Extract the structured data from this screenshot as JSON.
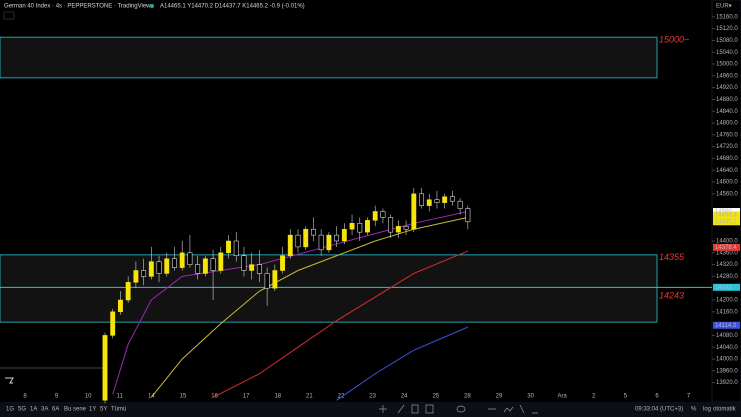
{
  "header": {
    "symbol": "German 40 Index · 4s · PEPPERSTONE · TradingView",
    "ohlc": "A14465.1 Y14470.2 D14437.7 K14465.2 -0.9 (-0.01%)",
    "currency": "EUR▾"
  },
  "chart_data": {
    "type": "candlestick",
    "up_color": "#f5e50b",
    "down_color": "#000000",
    "wick_color": "#d0d0d0",
    "ylim": [
      13861,
      15217
    ],
    "yticks": [
      {
        "value": 15160,
        "label": "15160.0"
      },
      {
        "value": 15120,
        "label": "15120.0"
      },
      {
        "value": 15080,
        "label": "15080.0"
      },
      {
        "value": 15040,
        "label": "15040.0"
      },
      {
        "value": 15000,
        "label": "15000.0"
      },
      {
        "value": 14960,
        "label": "14960.0"
      },
      {
        "value": 14920,
        "label": "14920.0"
      },
      {
        "value": 14880,
        "label": "14880.0"
      },
      {
        "value": 14840,
        "label": "14840.0"
      },
      {
        "value": 14800,
        "label": "14800.0"
      },
      {
        "value": 14760,
        "label": "14760.0"
      },
      {
        "value": 14720,
        "label": "14720.0"
      },
      {
        "value": 14680,
        "label": "14680.0"
      },
      {
        "value": 14640,
        "label": "14640.0"
      },
      {
        "value": 14600,
        "label": "14600.0"
      },
      {
        "value": 14560,
        "label": "14560.0"
      },
      {
        "value": 14400,
        "label": "14400.0"
      },
      {
        "value": 14360,
        "label": "14360.0"
      },
      {
        "value": 14320,
        "label": "14320.0"
      },
      {
        "value": 14280,
        "label": "14280.0"
      },
      {
        "value": 14200,
        "label": "14200.0"
      },
      {
        "value": 14160,
        "label": "14160.0"
      },
      {
        "value": 14080,
        "label": "14080.0"
      },
      {
        "value": 14040,
        "label": "14040.0"
      },
      {
        "value": 14000,
        "label": "14000.0"
      },
      {
        "value": 13960,
        "label": "13960.0"
      },
      {
        "value": 13920,
        "label": "13920.0"
      }
    ],
    "time_labels": [
      "8",
      "9",
      "10",
      "11",
      "14",
      "15",
      "16",
      "17",
      "18",
      "21",
      "22",
      "23",
      "24",
      "25",
      "28",
      "29",
      "30",
      "Ara",
      "2",
      "5",
      "6",
      "7"
    ],
    "open": [
      13860,
      14080,
      14160,
      14200,
      14260,
      14300,
      14280,
      14330,
      14290,
      14340,
      14310,
      14360,
      14320,
      14290,
      14340,
      14300,
      14360,
      14400,
      14350,
      14300,
      14320,
      14290,
      14240,
      14300,
      14350,
      14420,
      14380,
      14440,
      14420,
      14370,
      14420,
      14400,
      14440,
      14460,
      14430,
      14470,
      14500,
      14480,
      14430,
      14450,
      14440,
      14560,
      14520,
      14540,
      14530,
      14550,
      14535,
      14510
    ],
    "high": [
      14090,
      14170,
      14230,
      14280,
      14330,
      14340,
      14380,
      14350,
      14360,
      14380,
      14400,
      14420,
      14350,
      14350,
      14370,
      14380,
      14420,
      14430,
      14380,
      14360,
      14370,
      14310,
      14320,
      14380,
      14440,
      14440,
      14450,
      14480,
      14440,
      14430,
      14450,
      14460,
      14490,
      14480,
      14480,
      14520,
      14510,
      14490,
      14470,
      14470,
      14580,
      14580,
      14560,
      14570,
      14560,
      14570,
      14545,
      14520
    ],
    "low": [
      13850,
      14070,
      14150,
      14190,
      14240,
      14250,
      14270,
      14260,
      14280,
      14300,
      14300,
      14310,
      14270,
      14280,
      14200,
      14290,
      14340,
      14330,
      14280,
      14270,
      14260,
      14180,
      14230,
      14290,
      14340,
      14360,
      14370,
      14400,
      14350,
      14360,
      14380,
      14390,
      14420,
      14400,
      14420,
      14450,
      14460,
      14410,
      14410,
      14420,
      14430,
      14510,
      14500,
      14510,
      14510,
      14520,
      14490,
      14440
    ],
    "close": [
      14080,
      14160,
      14200,
      14260,
      14300,
      14280,
      14330,
      14290,
      14340,
      14310,
      14360,
      14320,
      14290,
      14340,
      14300,
      14360,
      14400,
      14350,
      14300,
      14320,
      14290,
      14240,
      14300,
      14350,
      14420,
      14380,
      14440,
      14420,
      14370,
      14420,
      14400,
      14440,
      14460,
      14430,
      14470,
      14500,
      14480,
      14430,
      14450,
      14440,
      14560,
      14520,
      14540,
      14530,
      14550,
      14535,
      14510,
      14465
    ],
    "ma": [
      {
        "color": "#9c27b0",
        "x": [
          1,
          3,
          6,
          10,
          20,
          30,
          40,
          47
        ],
        "values": [
          13880,
          14050,
          14200,
          14280,
          14320,
          14390,
          14460,
          14500
        ]
      },
      {
        "color": "#c9b83a",
        "x": [
          6,
          10,
          15,
          20,
          25,
          30,
          35,
          40,
          47
        ],
        "values": [
          13870,
          14000,
          14120,
          14230,
          14300,
          14350,
          14400,
          14440,
          14480
        ]
      },
      {
        "color": "#d32f2f",
        "x": [
          14,
          20,
          25,
          30,
          35,
          40,
          47
        ],
        "values": [
          13870,
          13950,
          14040,
          14130,
          14210,
          14290,
          14366
        ]
      },
      {
        "color": "#3f51e0",
        "x": [
          30,
          35,
          40,
          47
        ],
        "values": [
          13860,
          13950,
          14030,
          14108
        ]
      }
    ],
    "zones": [
      {
        "label": "15000~",
        "top": 15091,
        "bottom": 14953
      },
      {
        "label": "14355",
        "top": 14353,
        "bottom": 14125
      }
    ],
    "hline": {
      "value": 14243,
      "color": "#26c6da"
    },
    "price_tags": [
      {
        "value": 14500.0,
        "color": "#ffffff"
      },
      {
        "value": 14488.3,
        "color": "#f5e50b"
      },
      {
        "value": 14465.2,
        "color": "#f5e50b"
      },
      {
        "value": 14378.4,
        "color": "#e53935"
      },
      {
        "value": 14114.3,
        "color": "#3f51e0"
      }
    ]
  },
  "footer": {
    "ranges": [
      "1G",
      "5G",
      "1A",
      "3A",
      "6A",
      "Bu sene",
      "1Y",
      "5Y",
      "Tümü"
    ],
    "clock": "09:33:04 (UTC+3)",
    "percent": "%",
    "log": "log",
    "auto": "otomatik"
  }
}
